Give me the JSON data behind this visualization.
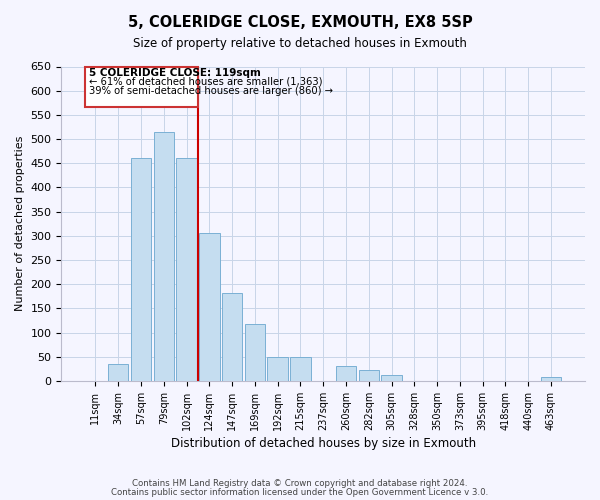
{
  "title": "5, COLERIDGE CLOSE, EXMOUTH, EX8 5SP",
  "subtitle": "Size of property relative to detached houses in Exmouth",
  "xlabel": "Distribution of detached houses by size in Exmouth",
  "ylabel": "Number of detached properties",
  "bar_labels": [
    "11sqm",
    "34sqm",
    "57sqm",
    "79sqm",
    "102sqm",
    "124sqm",
    "147sqm",
    "169sqm",
    "192sqm",
    "215sqm",
    "237sqm",
    "260sqm",
    "282sqm",
    "305sqm",
    "328sqm",
    "350sqm",
    "373sqm",
    "395sqm",
    "418sqm",
    "440sqm",
    "463sqm"
  ],
  "bar_values": [
    0,
    35,
    460,
    515,
    460,
    305,
    182,
    118,
    50,
    50,
    0,
    30,
    22,
    13,
    0,
    0,
    0,
    0,
    0,
    0,
    8
  ],
  "bar_color": "#c5ddf0",
  "bar_edge_color": "#7ab0d4",
  "vline_color": "#cc0000",
  "vline_x_idx": 5,
  "annotation_title": "5 COLERIDGE CLOSE: 119sqm",
  "annotation_line1": "← 61% of detached houses are smaller (1,363)",
  "annotation_line2": "39% of semi-detached houses are larger (860) →",
  "annotation_box_color": "white",
  "annotation_box_edge": "#cc3333",
  "ylim": [
    0,
    650
  ],
  "yticks": [
    0,
    50,
    100,
    150,
    200,
    250,
    300,
    350,
    400,
    450,
    500,
    550,
    600,
    650
  ],
  "footnote1": "Contains HM Land Registry data © Crown copyright and database right 2024.",
  "footnote2": "Contains public sector information licensed under the Open Government Licence v 3.0.",
  "bg_color": "#f5f5ff",
  "grid_color": "#c8d4e8"
}
